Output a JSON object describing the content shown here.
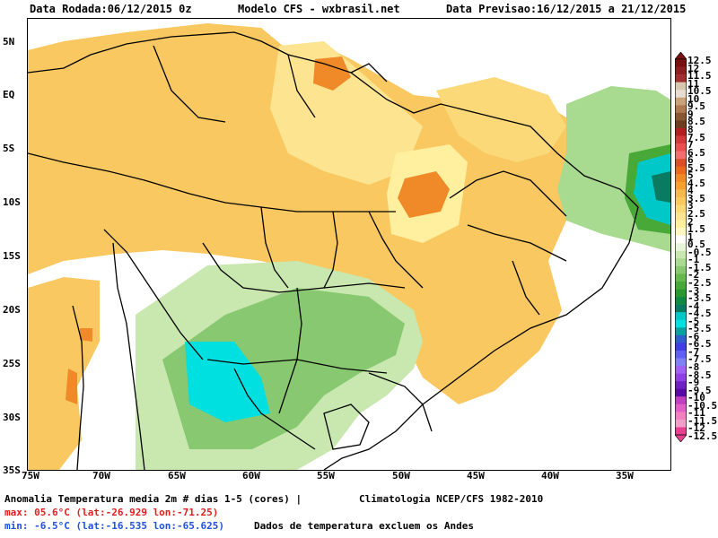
{
  "header": {
    "run_date": "Data Rodada:06/12/2015 0z",
    "model": "Modelo CFS - wxbrasil.net",
    "forecast_period": "Data Previsao:16/12/2015 a 21/12/2015"
  },
  "axes": {
    "lat_labels": [
      "5N",
      "EQ",
      "5S",
      "10S",
      "15S",
      "20S",
      "25S",
      "30S",
      "35S"
    ],
    "lon_labels": [
      "75W",
      "70W",
      "65W",
      "60W",
      "55W",
      "50W",
      "45W",
      "40W",
      "35W"
    ]
  },
  "colorbar": {
    "labels": [
      "12.5",
      "12",
      "11.5",
      "11",
      "10.5",
      "10",
      "9.5",
      "9",
      "8.5",
      "8",
      "7.5",
      "7",
      "6.5",
      "6",
      "5.5",
      "5",
      "4.5",
      "4",
      "3.5",
      "3",
      "2.5",
      "2",
      "1.5",
      "1",
      "0.5",
      "-0.5",
      "-1",
      "-1.5",
      "-2",
      "-2.5",
      "-3",
      "-3.5",
      "-4",
      "-4.5",
      "-5",
      "-5.5",
      "-6",
      "-6.5",
      "-7",
      "-7.5",
      "-8",
      "-8.5",
      "-9",
      "-9.5",
      "-10",
      "-10.5",
      "-11",
      "-11.5",
      "-12",
      "-12.5"
    ],
    "colors": [
      "#7a0f0f",
      "#8c1f1f",
      "#a03030",
      "#d8c8b0",
      "#e8ddd0",
      "#c9a27a",
      "#b07a50",
      "#8a5630",
      "#6e3d1e",
      "#b02020",
      "#d03a3a",
      "#e85050",
      "#f07070",
      "#d85028",
      "#e86a20",
      "#f08a28",
      "#f5a030",
      "#f7b850",
      "#f9c860",
      "#fbd878",
      "#fde490",
      "#fff0a0",
      "#fff8c0",
      "#ffffff",
      "#e8f5d8",
      "#c8e8b0",
      "#a8da90",
      "#88c870",
      "#68b850",
      "#48a838",
      "#2a9830",
      "#108a40",
      "#0a7a60",
      "#00c8c8",
      "#00e0e0",
      "#0aa0a0",
      "#3060c8",
      "#4040e0",
      "#6060f0",
      "#8080f0",
      "#a060f0",
      "#9040e0",
      "#7020c0",
      "#5a0aa0",
      "#c040c0",
      "#e060c8",
      "#f080c0",
      "#f0a0c8",
      "#e84090"
    ]
  },
  "footer": {
    "title": "Anomalia Temperatura media 2m # dias 1-5 (cores) |",
    "climatology": "Climatologia NCEP/CFS 1982-2010",
    "max": "max: 05.6°C (lat:-26.929 lon:-71.25)",
    "min": "min: -6.5°C (lat:-16.535 lon:-65.625)",
    "note": "Dados de temperatura excluem os Andes"
  },
  "colors": {
    "max_text": "#e02020",
    "min_text": "#2050e0"
  }
}
